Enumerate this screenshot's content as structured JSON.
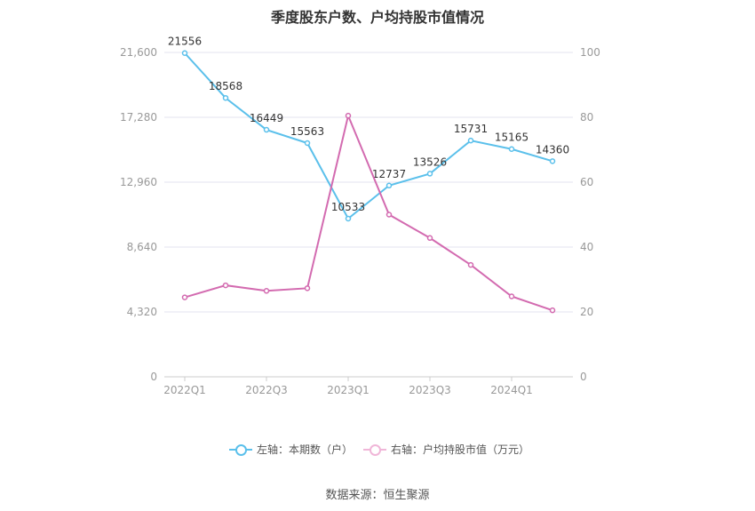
{
  "title": "季度股东户数、户均持股市值情况",
  "source": "数据来源：恒生聚源",
  "colors": {
    "left_series": "#5bc0eb",
    "right_series": "#d36bb0",
    "grid": "#e3e3ef",
    "axis_text": "#999999"
  },
  "chart_data": {
    "type": "line",
    "title": "季度股东户数、户均持股市值情况",
    "x": [
      "2022Q1",
      "2022Q2",
      "2022Q3",
      "2022Q4",
      "2023Q1",
      "2023Q2",
      "2023Q3",
      "2023Q4",
      "2024Q1",
      "2024Q2"
    ],
    "x_tick_labels": [
      "2022Q1",
      "2022Q3",
      "2023Q1",
      "2023Q3",
      "2024Q1"
    ],
    "left_axis": {
      "ylim": [
        0,
        21600
      ],
      "ticks": [
        "0",
        "4,320",
        "8,640",
        "12,960",
        "17,280",
        "21,600"
      ]
    },
    "right_axis": {
      "ylim": [
        0,
        100
      ],
      "ticks": [
        "0",
        "20",
        "40",
        "60",
        "80",
        "100"
      ]
    },
    "grid": true,
    "legend_position": "bottom-center",
    "series": [
      {
        "name": "左轴：本期数（户）",
        "axis": "left",
        "show_labels": true,
        "values": [
          21556,
          18568,
          16449,
          15563,
          10533,
          12737,
          13526,
          15731,
          15165,
          14360
        ]
      },
      {
        "name": "右轴：户均持股市值（万元）",
        "axis": "right",
        "show_labels": false,
        "values": [
          24.5,
          28.2,
          26.5,
          27.3,
          80.5,
          50.0,
          42.8,
          34.5,
          24.8,
          20.5
        ]
      }
    ]
  }
}
